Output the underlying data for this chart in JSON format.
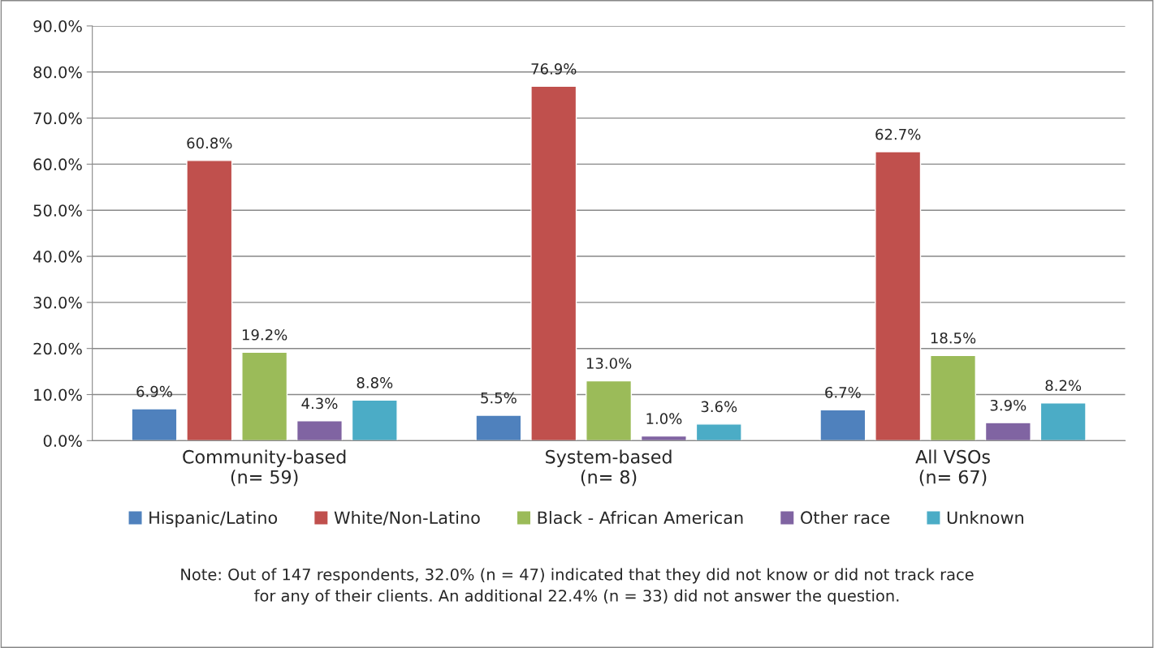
{
  "chart_data": {
    "type": "bar",
    "categories": [
      "Community-based\n(n= 59)",
      "System-based\n(n= 8)",
      "All VSOs\n(n= 67)"
    ],
    "series": [
      {
        "name": "Hispanic/Latino",
        "color": "#4f81bd",
        "values": [
          6.9,
          5.5,
          6.7
        ],
        "value_labels": [
          "6.9%",
          "5.5%",
          "6.7%"
        ]
      },
      {
        "name": "White/Non-Latino",
        "color": "#c0504d",
        "values": [
          60.8,
          76.9,
          62.7
        ],
        "value_labels": [
          "60.8%",
          "76.9%",
          "62.7%"
        ]
      },
      {
        "name": "Black - African American",
        "color": "#9bbb59",
        "values": [
          19.2,
          13.0,
          18.5
        ],
        "value_labels": [
          "19.2%",
          "13.0%",
          "18.5%"
        ]
      },
      {
        "name": "Other race",
        "color": "#8064a2",
        "values": [
          4.3,
          1.0,
          3.9
        ],
        "value_labels": [
          "4.3%",
          "1.0%",
          "3.9%"
        ]
      },
      {
        "name": "Unknown",
        "color": "#4bacc6",
        "values": [
          8.8,
          3.6,
          8.2
        ],
        "value_labels": [
          "8.8%",
          "3.6%",
          "8.2%"
        ]
      }
    ],
    "ylim": [
      0,
      90
    ],
    "yticks": [
      {
        "value": 0,
        "label": "0.0%"
      },
      {
        "value": 10,
        "label": "10.0%"
      },
      {
        "value": 20,
        "label": "20.0%"
      },
      {
        "value": 30,
        "label": "30.0%"
      },
      {
        "value": 40,
        "label": "40.0%"
      },
      {
        "value": 50,
        "label": "50.0%"
      },
      {
        "value": 60,
        "label": "60.0%"
      },
      {
        "value": 70,
        "label": "70.0%"
      },
      {
        "value": 80,
        "label": "80.0%"
      },
      {
        "value": 90,
        "label": "90.0%"
      }
    ],
    "grid": "y",
    "legend": "bottom",
    "annotations": [
      "Note: Out of 147 respondents, 32.0% (n = 47) indicated that they did not know or did not track race\nfor any of their clients. An additional 22.4% (n = 33) did not answer the question."
    ]
  }
}
